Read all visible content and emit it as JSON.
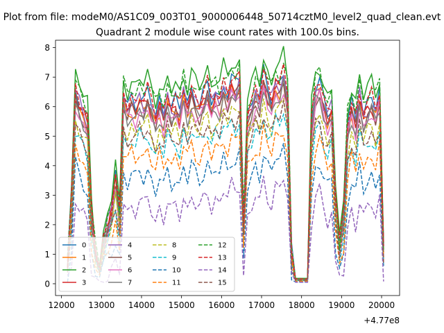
{
  "chart_data": {
    "type": "line",
    "suptitle": "Plot from file: modeM0/AS1C09_003T01_9000006448_50714cztM0_level2_quad_clean.evt",
    "title": "Quadrant 2 module wise count rates with 100.0s bins.",
    "xlabel": "",
    "ylabel": "",
    "x_offset_label": "+4.77e8",
    "xlim": [
      11850,
      20450
    ],
    "ylim": [
      -0.4,
      8.25
    ],
    "xticks": [
      12000,
      13000,
      14000,
      15000,
      16000,
      17000,
      18000,
      19000,
      20000
    ],
    "xtick_labels": [
      "12000",
      "13000",
      "14000",
      "15000",
      "16000",
      "17000",
      "18000",
      "19000",
      "20000"
    ],
    "yticks": [
      0,
      1,
      2,
      3,
      4,
      5,
      6,
      7,
      8
    ],
    "ytick_labels": [
      "0",
      "1",
      "2",
      "3",
      "4",
      "5",
      "6",
      "7",
      "8"
    ],
    "x": [
      12150,
      12250,
      12350,
      12450,
      12550,
      12650,
      12750,
      12850,
      12950,
      13050,
      13150,
      13250,
      13350,
      13450,
      13550,
      13650,
      13750,
      13850,
      13950,
      14050,
      14150,
      14250,
      14350,
      14450,
      14550,
      14650,
      14750,
      14850,
      14950,
      15050,
      15150,
      15250,
      15350,
      15450,
      15550,
      15650,
      15750,
      15850,
      15950,
      16050,
      16150,
      16250,
      16350,
      16450,
      16550,
      16650,
      16750,
      16850,
      16950,
      17050,
      17150,
      17250,
      17350,
      17450,
      17550,
      17650,
      17750,
      17850,
      17950,
      18050,
      18150,
      18250,
      18350,
      18450,
      18550,
      18650,
      18750,
      18850,
      18950,
      19050,
      19150,
      19250,
      19350,
      19450,
      19550,
      19650,
      19750,
      19850,
      19950,
      20050
    ],
    "base": [
      0.6,
      2.8,
      6.3,
      5.9,
      5.6,
      5.3,
      2.2,
      1.0,
      0.5,
      1.4,
      1.9,
      2.4,
      3.4,
      2.1,
      6.1,
      5.7,
      6.0,
      5.8,
      6.1,
      5.9,
      6.2,
      5.8,
      5.4,
      5.9,
      5.5,
      6.1,
      5.7,
      5.9,
      5.6,
      6.3,
      5.8,
      6.3,
      6.0,
      5.8,
      6.1,
      6.4,
      5.9,
      6.2,
      6.0,
      6.5,
      6.2,
      6.6,
      6.4,
      6.7,
      2.0,
      5.5,
      5.8,
      6.3,
      6.0,
      6.8,
      6.3,
      6.0,
      6.6,
      6.5,
      6.9,
      6.1,
      1.0,
      0.15,
      0.15,
      0.15,
      0.15,
      5.2,
      6.3,
      6.5,
      5.9,
      5.5,
      5.8,
      2.8,
      1.2,
      2.2,
      5.1,
      5.8,
      5.3,
      6.2,
      5.5,
      5.8,
      6.0,
      5.6,
      6.2,
      1.1
    ],
    "series": [
      {
        "name": "0",
        "color": "#1f77b4",
        "style": "solid",
        "offset": 0.3
      },
      {
        "name": "1",
        "color": "#ff7f0e",
        "style": "solid",
        "offset": -0.05
      },
      {
        "name": "2",
        "color": "#2ca02c",
        "style": "solid",
        "offset": 0.85
      },
      {
        "name": "3",
        "color": "#d62728",
        "style": "solid",
        "offset": 0.05
      },
      {
        "name": "4",
        "color": "#9467bd",
        "style": "solid",
        "offset": 0.15
      },
      {
        "name": "5",
        "color": "#8c564b",
        "style": "solid",
        "offset": -0.1
      },
      {
        "name": "6",
        "color": "#e377c2",
        "style": "solid",
        "offset": -0.25
      },
      {
        "name": "7",
        "color": "#7f7f7f",
        "style": "solid",
        "offset": -0.2
      },
      {
        "name": "8",
        "color": "#bcbd22",
        "style": "dashed",
        "offset": -0.7
      },
      {
        "name": "9",
        "color": "#17becf",
        "style": "dashed",
        "offset": -1.1
      },
      {
        "name": "10",
        "color": "#1f77b4",
        "style": "dashed",
        "offset": -2.3
      },
      {
        "name": "11",
        "color": "#ff7f0e",
        "style": "dashed",
        "offset": -1.6
      },
      {
        "name": "12",
        "color": "#2ca02c",
        "style": "dashed",
        "offset": 0.65
      },
      {
        "name": "13",
        "color": "#d62728",
        "style": "dashed",
        "offset": 0.35
      },
      {
        "name": "14",
        "color": "#9467bd",
        "style": "dashed",
        "offset": -3.3
      },
      {
        "name": "15",
        "color": "#8c564b",
        "style": "dashed",
        "offset": -0.9
      }
    ]
  }
}
